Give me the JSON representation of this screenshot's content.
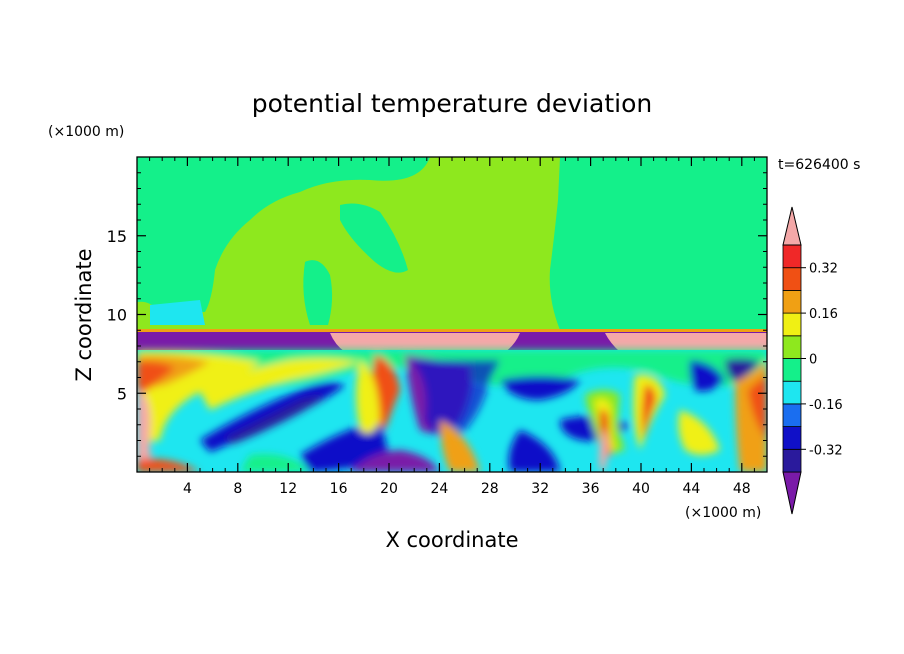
{
  "chart_data": {
    "type": "heatmap",
    "title": "potential temperature deviation",
    "time_label": "t=626400 s",
    "xlabel": "X coordinate",
    "ylabel": "Z coordinate",
    "x_unit": "(×1000 m)",
    "y_unit": "(×1000 m)",
    "xlim": [
      0,
      50
    ],
    "ylim": [
      0,
      20
    ],
    "x_ticks": [
      4,
      8,
      12,
      16,
      20,
      24,
      28,
      32,
      36,
      40,
      44,
      48
    ],
    "y_ticks": [
      5,
      10,
      15
    ],
    "colorbar": {
      "levels": [
        -0.4,
        -0.32,
        -0.24,
        -0.16,
        -0.08,
        0,
        0.08,
        0.16,
        0.24,
        0.32,
        0.4
      ],
      "labeled_levels": [
        -0.32,
        -0.16,
        0,
        0.16,
        0.32
      ],
      "labels": [
        "-0.32",
        "-0.16",
        "0",
        "0.16",
        "0.32"
      ],
      "colors": [
        "#7a1aa8",
        "#2a1a9c",
        "#1010c8",
        "#1a6ef0",
        "#1ee6f0",
        "#14f08a",
        "#8ee81e",
        "#f0f014",
        "#f0a014",
        "#f05014",
        "#f02828",
        "#f4a8a8"
      ],
      "extend": "both"
    },
    "features": {
      "stable_layer_base_km": 8.8,
      "upper_background": "near zero (green)",
      "lower_layer": "turbulent mixed positive/negative deviations"
    }
  }
}
